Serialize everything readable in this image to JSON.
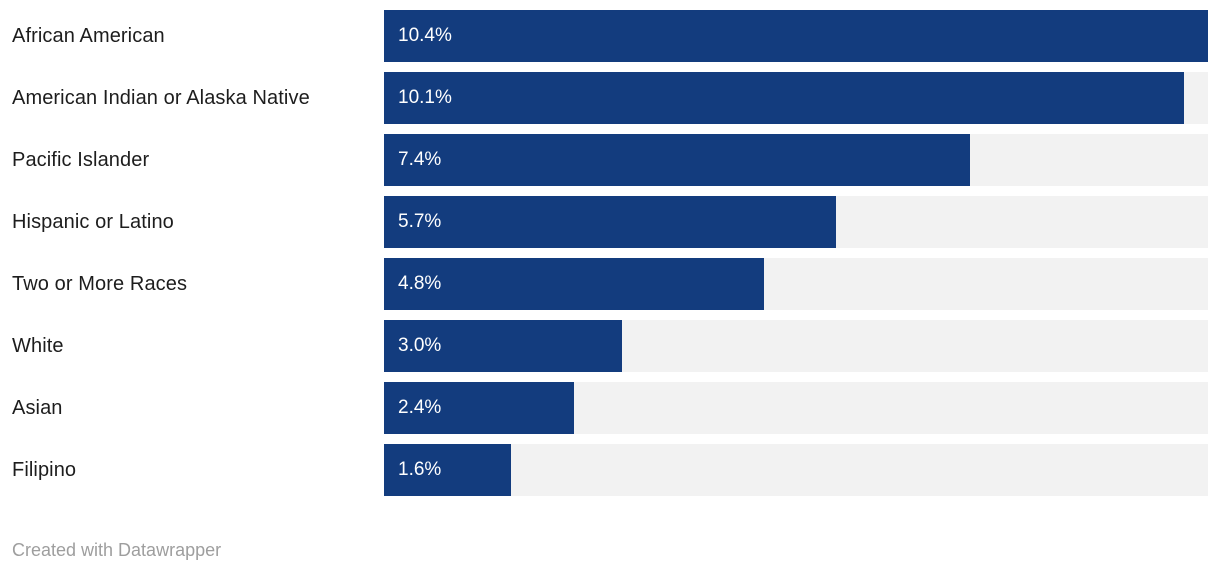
{
  "chart_data": {
    "type": "bar",
    "orientation": "horizontal",
    "title": "",
    "xlabel": "",
    "ylabel": "",
    "grid": false,
    "legend": null,
    "xlim": [
      0,
      10.4
    ],
    "categories": [
      "African American",
      "American Indian or Alaska Native",
      "Pacific Islander",
      "Hispanic or Latino",
      "Two or More Races",
      "White",
      "Asian",
      "Filipino"
    ],
    "values": [
      10.4,
      10.1,
      7.4,
      5.7,
      4.8,
      3.0,
      2.4,
      1.6
    ],
    "value_labels": [
      "10.4%",
      "10.1%",
      "7.4%",
      "5.7%",
      "4.8%",
      "3.0%",
      "2.4%",
      "1.6%"
    ]
  },
  "colors": {
    "bar": "#133c7e",
    "track": "#f2f2f2",
    "label": "#1d1d1d",
    "value": "#ffffff",
    "footer": "#9e9e9e",
    "background": "#ffffff"
  },
  "footer": {
    "credit": "Created with Datawrapper"
  }
}
